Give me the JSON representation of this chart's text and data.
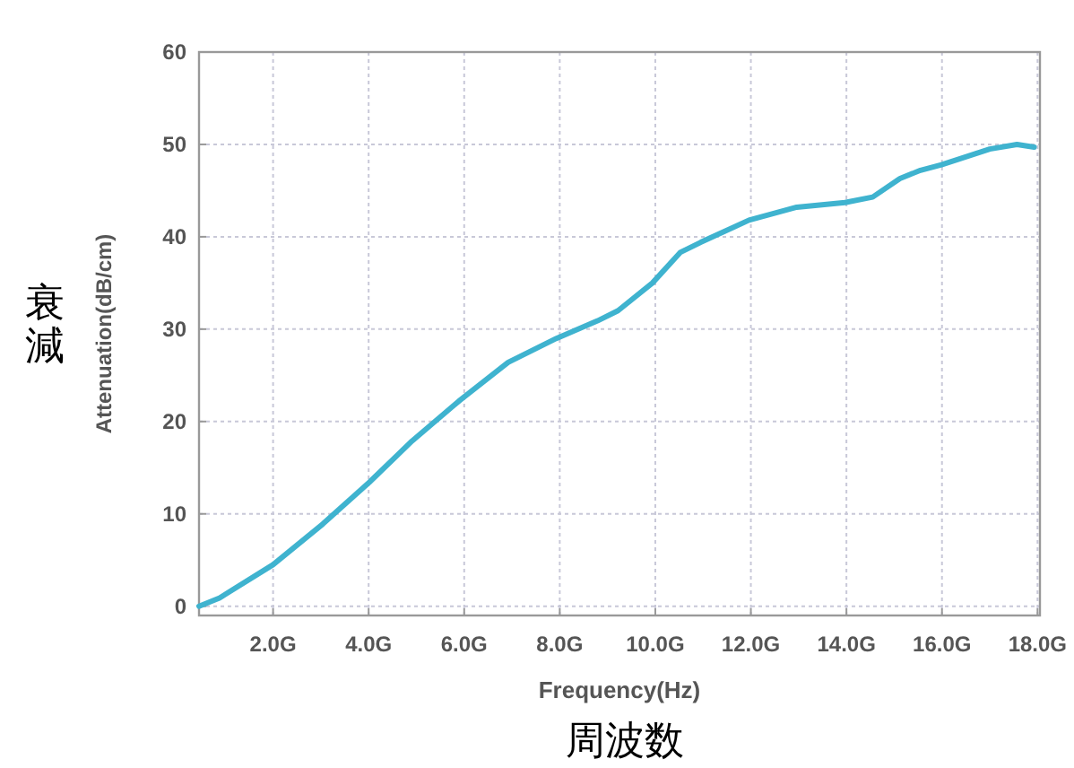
{
  "chart_data": {
    "type": "line",
    "xlabel": "Frequency(Hz)",
    "ylabel": "Attenuation(dB/cm)",
    "annotations": [
      "衰減",
      "周波数"
    ],
    "xlim": [
      0.45,
      18.05
    ],
    "ylim": [
      -1,
      60
    ],
    "xticks": [
      {
        "value": 2,
        "label": "2.0G"
      },
      {
        "value": 4,
        "label": "4.0G"
      },
      {
        "value": 6,
        "label": "6.0G"
      },
      {
        "value": 8,
        "label": "8.0G"
      },
      {
        "value": 10,
        "label": "10.0G"
      },
      {
        "value": 12,
        "label": "12.0G"
      },
      {
        "value": 14,
        "label": "14.0G"
      },
      {
        "value": 16,
        "label": "16.0G"
      },
      {
        "value": 18,
        "label": "18.0G"
      }
    ],
    "yticks": [
      0,
      10,
      20,
      30,
      40,
      50,
      60
    ],
    "grid": true,
    "line_style": "solid",
    "marker": "none",
    "series": [
      {
        "color": "#3fb3cf",
        "x": [
          0.45,
          0.88,
          2,
          3.04,
          4.01,
          4.91,
          5.91,
          6.92,
          7.93,
          8.79,
          9.22,
          9.94,
          10.52,
          10.95,
          11.96,
          12.96,
          13.97,
          14.55,
          15.12,
          15.55,
          15.99,
          17.0,
          17.57,
          17.93
        ],
        "values": [
          0,
          0.9,
          4.5,
          8.9,
          13.4,
          17.9,
          22.3,
          26.4,
          29.0,
          30.9,
          32.0,
          35.0,
          38.3,
          39.4,
          41.8,
          43.2,
          43.7,
          44.3,
          46.3,
          47.2,
          47.8,
          49.5,
          50.0,
          49.7
        ]
      }
    ]
  }
}
